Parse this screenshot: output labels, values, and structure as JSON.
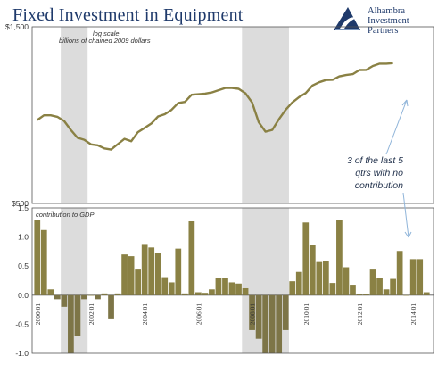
{
  "header": {
    "title": "Fixed Investment in Equipment",
    "logo_lines": [
      "Alhambra",
      "Investment",
      "Partners"
    ]
  },
  "colors": {
    "line": "#8a8144",
    "bar": "#8a8144",
    "bar_neg": "#7d7547",
    "recession": "#dcdcdc",
    "annotation": "#8fb4d9"
  },
  "chart_data": [
    {
      "type": "line",
      "scale": "log",
      "ylim": [
        500,
        1500
      ],
      "y_ticks": [
        "$1,500",
        "$500"
      ],
      "note_lines": [
        "log scale,",
        "billions of chained 2009 dollars"
      ],
      "x_start": "2000Q1",
      "values": [
        840,
        865,
        865,
        857,
        835,
        790,
        752,
        743,
        722,
        718,
        704,
        699,
        723,
        747,
        736,
        779,
        800,
        822,
        859,
        871,
        895,
        934,
        940,
        983,
        986,
        990,
        997,
        1011,
        1025,
        1025,
        1020,
        992,
        937,
        828,
        781,
        790,
        844,
        895,
        937,
        969,
        993,
        1041,
        1062,
        1077,
        1079,
        1102,
        1111,
        1117,
        1146,
        1147,
        1175,
        1192,
        1192,
        1196
      ],
      "shaded_periods": [
        [
          "2001Q1",
          "2001Q4"
        ],
        [
          "2007Q4",
          "2009Q2"
        ]
      ],
      "annotation": [
        "3 of the last 5",
        "qtrs with no",
        "contribution"
      ]
    },
    {
      "type": "bar",
      "ylim": [
        -1.0,
        1.5
      ],
      "y_ticks": [
        "1.5",
        "1.0",
        "0.5",
        "0.0",
        "-0.5",
        "-1.0"
      ],
      "note": "contribution to GDP",
      "values": [
        1.3,
        1.12,
        0.1,
        -0.07,
        -0.2,
        -1.0,
        -0.7,
        -0.07,
        0.0,
        -0.07,
        0.03,
        -0.4,
        0.03,
        0.7,
        0.67,
        0.44,
        0.88,
        0.82,
        0.73,
        0.31,
        0.22,
        0.8,
        0.03,
        1.27,
        0.05,
        0.04,
        0.1,
        0.3,
        0.29,
        0.22,
        0.2,
        0.12,
        -0.6,
        -0.75,
        -1.0,
        -1.0,
        -1.0,
        -0.6,
        0.24,
        0.4,
        1.25,
        0.86,
        0.57,
        0.58,
        0.21,
        1.3,
        0.48,
        0.18,
        0.02,
        0.02,
        0.44,
        0.3,
        0.1,
        0.28,
        0.76,
        0.0,
        0.62,
        0.62,
        0.05
      ],
      "x_labels": [
        "2000.01",
        "2002.01",
        "2004.01",
        "2006.01",
        "2008.01",
        "2010.01",
        "2012.01",
        "2014.01"
      ]
    }
  ]
}
